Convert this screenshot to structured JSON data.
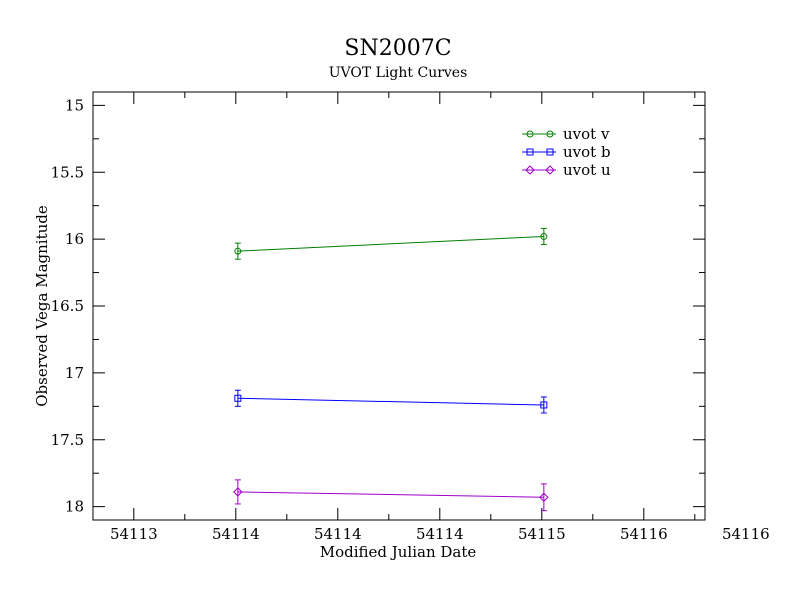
{
  "chart_data": {
    "type": "line",
    "title": "SN2007C",
    "subtitle": "UVOT Light Curves",
    "xlabel": "Modified Julian Date",
    "ylabel": "Observed Vega Magnitude",
    "xlim": [
      54113.2,
      54116.2
    ],
    "ylim": [
      14.9,
      18.1
    ],
    "y_inverted": true,
    "xticks": [
      {
        "value": 54113.4,
        "label": "54113"
      },
      {
        "value": 54113.9,
        "label": "54114"
      },
      {
        "value": 54114.4,
        "label": "54114"
      },
      {
        "value": 54114.9,
        "label": "54114"
      },
      {
        "value": 54115.4,
        "label": "54115"
      },
      {
        "value": 54115.9,
        "label": "54116"
      },
      {
        "value": 54116.4,
        "label": "54116"
      }
    ],
    "yticks": [
      {
        "value": 15,
        "label": "15"
      },
      {
        "value": 15.5,
        "label": "15.5"
      },
      {
        "value": 16,
        "label": "16"
      },
      {
        "value": 16.5,
        "label": "16.5"
      },
      {
        "value": 17,
        "label": "17"
      },
      {
        "value": 17.5,
        "label": "17.5"
      },
      {
        "value": 18,
        "label": "18"
      }
    ],
    "grid": false,
    "legend_position": "top-right",
    "series": [
      {
        "name": "uvot v",
        "color": "#008000",
        "marker": "circle",
        "x": [
          54113.91,
          54115.41
        ],
        "y": [
          16.09,
          15.98
        ],
        "err": [
          0.06,
          0.06
        ]
      },
      {
        "name": "uvot b",
        "color": "#0000ff",
        "marker": "square",
        "x": [
          54113.91,
          54115.41
        ],
        "y": [
          17.19,
          17.24
        ],
        "err": [
          0.06,
          0.06
        ]
      },
      {
        "name": "uvot u",
        "color": "#a000c8",
        "marker": "diamond",
        "x": [
          54113.91,
          54115.41
        ],
        "y": [
          17.89,
          17.93
        ],
        "err": [
          0.09,
          0.1
        ]
      }
    ]
  }
}
